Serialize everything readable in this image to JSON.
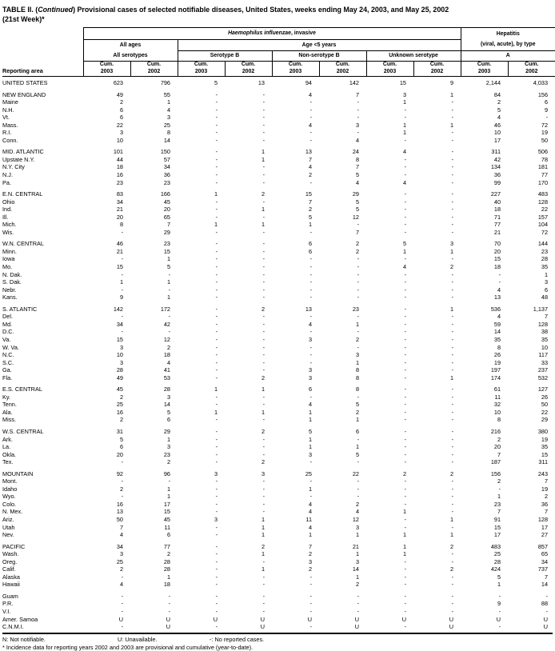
{
  "title": {
    "part1": "TABLE II. (",
    "part2": "Continued",
    "part3": ") Provisional cases of selected notifiable diseases, United States, weeks ending May 24, 2003, and May 25, 2002",
    "line2": "(21st Week)*"
  },
  "header": {
    "reporting_area": "Reporting area",
    "haemophilus_italic": "Haemophilus influenzae",
    "haemophilus_rest": ", invasive",
    "hepatitis_line1": "Hepatitis",
    "hepatitis_line2": "(viral, acute), by type",
    "all_ages": "All ages",
    "all_serotypes": "All serotypes",
    "age_under_5": "Age <5 years",
    "serotype_b": "Serotype B",
    "non_serotype_b": "Non-serotype B",
    "unknown_serotype": "Unknown serotype",
    "type_a": "A",
    "cum": "Cum.",
    "year_2003": "2003",
    "year_2002": "2002"
  },
  "sections": [
    {
      "rows": [
        {
          "area": "UNITED STATES",
          "values": [
            "623",
            "796",
            "5",
            "13",
            "94",
            "142",
            "15",
            "9",
            "2,144",
            "4,033"
          ]
        }
      ]
    },
    {
      "rows": [
        {
          "area": "NEW ENGLAND",
          "values": [
            "49",
            "55",
            "-",
            "-",
            "4",
            "7",
            "3",
            "1",
            "84",
            "156"
          ]
        },
        {
          "area": "Maine",
          "values": [
            "2",
            "1",
            "-",
            "-",
            "-",
            "-",
            "1",
            "-",
            "2",
            "6"
          ]
        },
        {
          "area": "N.H.",
          "values": [
            "6",
            "4",
            "-",
            "-",
            "-",
            "-",
            "-",
            "-",
            "5",
            "9"
          ]
        },
        {
          "area": "Vt.",
          "values": [
            "6",
            "3",
            "-",
            "-",
            "-",
            "-",
            "-",
            "-",
            "4",
            "-"
          ]
        },
        {
          "area": "Mass.",
          "values": [
            "22",
            "25",
            "-",
            "-",
            "4",
            "3",
            "1",
            "1",
            "46",
            "72"
          ]
        },
        {
          "area": "R.I.",
          "values": [
            "3",
            "8",
            "-",
            "-",
            "-",
            "-",
            "1",
            "-",
            "10",
            "19"
          ]
        },
        {
          "area": "Conn.",
          "values": [
            "10",
            "14",
            "-",
            "-",
            "-",
            "4",
            "-",
            "-",
            "17",
            "50"
          ]
        }
      ]
    },
    {
      "rows": [
        {
          "area": "MID. ATLANTIC",
          "values": [
            "101",
            "150",
            "-",
            "1",
            "13",
            "24",
            "4",
            "-",
            "311",
            "506"
          ]
        },
        {
          "area": "Upstate N.Y.",
          "values": [
            "44",
            "57",
            "-",
            "1",
            "7",
            "8",
            "-",
            "-",
            "42",
            "78"
          ]
        },
        {
          "area": "N.Y. City",
          "values": [
            "18",
            "34",
            "-",
            "-",
            "4",
            "7",
            "-",
            "-",
            "134",
            "181"
          ]
        },
        {
          "area": "N.J.",
          "values": [
            "16",
            "36",
            "-",
            "-",
            "2",
            "5",
            "-",
            "-",
            "36",
            "77"
          ]
        },
        {
          "area": "Pa.",
          "values": [
            "23",
            "23",
            "-",
            "-",
            "-",
            "4",
            "4",
            "-",
            "99",
            "170"
          ]
        }
      ]
    },
    {
      "rows": [
        {
          "area": "E.N. CENTRAL",
          "values": [
            "83",
            "166",
            "1",
            "2",
            "15",
            "29",
            "-",
            "-",
            "227",
            "483"
          ]
        },
        {
          "area": "Ohio",
          "values": [
            "34",
            "45",
            "-",
            "-",
            "7",
            "5",
            "-",
            "-",
            "40",
            "128"
          ]
        },
        {
          "area": "Ind.",
          "values": [
            "21",
            "20",
            "-",
            "1",
            "2",
            "5",
            "-",
            "-",
            "18",
            "22"
          ]
        },
        {
          "area": "Ill.",
          "values": [
            "20",
            "65",
            "-",
            "-",
            "5",
            "12",
            "-",
            "-",
            "71",
            "157"
          ]
        },
        {
          "area": "Mich.",
          "values": [
            "8",
            "7",
            "1",
            "1",
            "1",
            "-",
            "-",
            "-",
            "77",
            "104"
          ]
        },
        {
          "area": "Wis.",
          "values": [
            "-",
            "29",
            "-",
            "-",
            "-",
            "7",
            "-",
            "-",
            "21",
            "72"
          ]
        }
      ]
    },
    {
      "rows": [
        {
          "area": "W.N. CENTRAL",
          "values": [
            "46",
            "23",
            "-",
            "-",
            "6",
            "2",
            "5",
            "3",
            "70",
            "144"
          ]
        },
        {
          "area": "Minn.",
          "values": [
            "21",
            "15",
            "-",
            "-",
            "6",
            "2",
            "1",
            "1",
            "20",
            "23"
          ]
        },
        {
          "area": "Iowa",
          "values": [
            "-",
            "1",
            "-",
            "-",
            "-",
            "-",
            "-",
            "-",
            "15",
            "28"
          ]
        },
        {
          "area": "Mo.",
          "values": [
            "15",
            "5",
            "-",
            "-",
            "-",
            "-",
            "4",
            "2",
            "18",
            "35"
          ]
        },
        {
          "area": "N. Dak.",
          "values": [
            "-",
            "-",
            "-",
            "-",
            "-",
            "-",
            "-",
            "-",
            "-",
            "1"
          ]
        },
        {
          "area": "S. Dak.",
          "values": [
            "1",
            "1",
            "-",
            "-",
            "-",
            "-",
            "-",
            "-",
            "-",
            "3"
          ]
        },
        {
          "area": "Nebr.",
          "values": [
            "-",
            "-",
            "-",
            "-",
            "-",
            "-",
            "-",
            "-",
            "4",
            "6"
          ]
        },
        {
          "area": "Kans.",
          "values": [
            "9",
            "1",
            "-",
            "-",
            "-",
            "-",
            "-",
            "-",
            "13",
            "48"
          ]
        }
      ]
    },
    {
      "rows": [
        {
          "area": "S. ATLANTIC",
          "values": [
            "142",
            "172",
            "-",
            "2",
            "13",
            "23",
            "-",
            "1",
            "536",
            "1,137"
          ]
        },
        {
          "area": "Del.",
          "values": [
            "-",
            "-",
            "-",
            "-",
            "-",
            "-",
            "-",
            "-",
            "4",
            "7"
          ]
        },
        {
          "area": "Md.",
          "values": [
            "34",
            "42",
            "-",
            "-",
            "4",
            "1",
            "-",
            "-",
            "59",
            "128"
          ]
        },
        {
          "area": "D.C.",
          "values": [
            "-",
            "-",
            "-",
            "-",
            "-",
            "-",
            "-",
            "-",
            "14",
            "38"
          ]
        },
        {
          "area": "Va.",
          "values": [
            "15",
            "12",
            "-",
            "-",
            "3",
            "2",
            "-",
            "-",
            "35",
            "35"
          ]
        },
        {
          "area": "W. Va.",
          "values": [
            "3",
            "2",
            "-",
            "-",
            "-",
            "-",
            "-",
            "-",
            "8",
            "10"
          ]
        },
        {
          "area": "N.C.",
          "values": [
            "10",
            "18",
            "-",
            "-",
            "-",
            "3",
            "-",
            "-",
            "26",
            "117"
          ]
        },
        {
          "area": "S.C.",
          "values": [
            "3",
            "4",
            "-",
            "-",
            "-",
            "1",
            "-",
            "-",
            "19",
            "33"
          ]
        },
        {
          "area": "Ga.",
          "values": [
            "28",
            "41",
            "-",
            "-",
            "3",
            "8",
            "-",
            "-",
            "197",
            "237"
          ]
        },
        {
          "area": "Fla.",
          "values": [
            "49",
            "53",
            "-",
            "2",
            "3",
            "8",
            "-",
            "1",
            "174",
            "532"
          ]
        }
      ]
    },
    {
      "rows": [
        {
          "area": "E.S. CENTRAL",
          "values": [
            "45",
            "28",
            "1",
            "1",
            "6",
            "8",
            "-",
            "-",
            "61",
            "127"
          ]
        },
        {
          "area": "Ky.",
          "values": [
            "2",
            "3",
            "-",
            "-",
            "-",
            "-",
            "-",
            "-",
            "11",
            "26"
          ]
        },
        {
          "area": "Tenn.",
          "values": [
            "25",
            "14",
            "-",
            "-",
            "4",
            "5",
            "-",
            "-",
            "32",
            "50"
          ]
        },
        {
          "area": "Ala.",
          "values": [
            "16",
            "5",
            "1",
            "1",
            "1",
            "2",
            "-",
            "-",
            "10",
            "22"
          ]
        },
        {
          "area": "Miss.",
          "values": [
            "2",
            "6",
            "-",
            "-",
            "1",
            "1",
            "-",
            "-",
            "8",
            "29"
          ]
        }
      ]
    },
    {
      "rows": [
        {
          "area": "W.S. CENTRAL",
          "values": [
            "31",
            "29",
            "-",
            "2",
            "5",
            "6",
            "-",
            "-",
            "216",
            "380"
          ]
        },
        {
          "area": "Ark.",
          "values": [
            "5",
            "1",
            "-",
            "-",
            "1",
            "-",
            "-",
            "-",
            "2",
            "19"
          ]
        },
        {
          "area": "La.",
          "values": [
            "6",
            "3",
            "-",
            "-",
            "1",
            "1",
            "-",
            "-",
            "20",
            "35"
          ]
        },
        {
          "area": "Okla.",
          "values": [
            "20",
            "23",
            "-",
            "-",
            "3",
            "5",
            "-",
            "-",
            "7",
            "15"
          ]
        },
        {
          "area": "Tex.",
          "values": [
            "-",
            "2",
            "-",
            "2",
            "-",
            "-",
            "-",
            "-",
            "187",
            "311"
          ]
        }
      ]
    },
    {
      "rows": [
        {
          "area": "MOUNTAIN",
          "values": [
            "92",
            "96",
            "3",
            "3",
            "25",
            "22",
            "2",
            "2",
            "156",
            "243"
          ]
        },
        {
          "area": "Mont.",
          "values": [
            "-",
            "-",
            "-",
            "-",
            "-",
            "-",
            "-",
            "-",
            "2",
            "7"
          ]
        },
        {
          "area": "Idaho",
          "values": [
            "2",
            "1",
            "-",
            "-",
            "1",
            "-",
            "-",
            "-",
            "-",
            "19"
          ]
        },
        {
          "area": "Wyo.",
          "values": [
            "-",
            "1",
            "-",
            "-",
            "-",
            "-",
            "-",
            "-",
            "1",
            "2"
          ]
        },
        {
          "area": "Colo.",
          "values": [
            "16",
            "17",
            "-",
            "-",
            "4",
            "2",
            "-",
            "-",
            "23",
            "36"
          ]
        },
        {
          "area": "N. Mex.",
          "values": [
            "13",
            "15",
            "-",
            "-",
            "4",
            "4",
            "1",
            "-",
            "7",
            "7"
          ]
        },
        {
          "area": "Ariz.",
          "values": [
            "50",
            "45",
            "3",
            "1",
            "11",
            "12",
            "-",
            "1",
            "91",
            "128"
          ]
        },
        {
          "area": "Utah",
          "values": [
            "7",
            "11",
            "-",
            "1",
            "4",
            "3",
            "-",
            "-",
            "15",
            "17"
          ]
        },
        {
          "area": "Nev.",
          "values": [
            "4",
            "6",
            "-",
            "1",
            "1",
            "1",
            "1",
            "1",
            "17",
            "27"
          ]
        }
      ]
    },
    {
      "rows": [
        {
          "area": "PACIFIC",
          "values": [
            "34",
            "77",
            "-",
            "2",
            "7",
            "21",
            "1",
            "2",
            "483",
            "857"
          ]
        },
        {
          "area": "Wash.",
          "values": [
            "3",
            "2",
            "-",
            "1",
            "2",
            "1",
            "1",
            "-",
            "25",
            "65"
          ]
        },
        {
          "area": "Oreg.",
          "values": [
            "25",
            "28",
            "-",
            "-",
            "3",
            "3",
            "-",
            "-",
            "28",
            "34"
          ]
        },
        {
          "area": "Calif.",
          "values": [
            "2",
            "28",
            "-",
            "1",
            "2",
            "14",
            "-",
            "2",
            "424",
            "737"
          ]
        },
        {
          "area": "Alaska",
          "values": [
            "-",
            "1",
            "-",
            "-",
            "-",
            "1",
            "-",
            "-",
            "5",
            "7"
          ]
        },
        {
          "area": "Hawaii",
          "values": [
            "4",
            "18",
            "-",
            "-",
            "-",
            "2",
            "-",
            "-",
            "1",
            "14"
          ]
        }
      ]
    },
    {
      "rows": [
        {
          "area": "Guam",
          "values": [
            "-",
            "-",
            "-",
            "-",
            "-",
            "-",
            "-",
            "-",
            "-",
            "-"
          ]
        },
        {
          "area": "P.R.",
          "values": [
            "-",
            "-",
            "-",
            "-",
            "-",
            "-",
            "-",
            "-",
            "9",
            "88"
          ]
        },
        {
          "area": "V.I.",
          "values": [
            "-",
            "-",
            "-",
            "-",
            "-",
            "-",
            "-",
            "-",
            "-",
            "-"
          ]
        },
        {
          "area": "Amer. Samoa",
          "values": [
            "U",
            "U",
            "U",
            "U",
            "U",
            "U",
            "U",
            "U",
            "U",
            "U"
          ]
        },
        {
          "area": "C.N.M.I.",
          "values": [
            "-",
            "U",
            "-",
            "U",
            "-",
            "U",
            "-",
            "U",
            "-",
            "U"
          ]
        }
      ]
    }
  ],
  "footnotes": {
    "not_notifiable": "N: Not notifiable.",
    "unavailable": "U: Unavailable.",
    "no_cases": "-: No reported cases.",
    "incidence": "* Incidence data for reporting years 2002 and 2003 are provisional and cumulative (year-to-date)."
  }
}
